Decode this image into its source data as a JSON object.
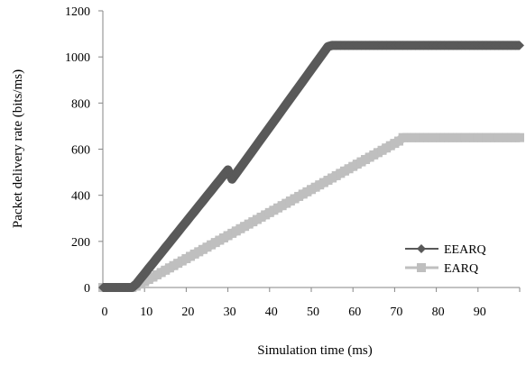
{
  "chart_data": {
    "type": "line",
    "xlabel": "Simulation time (ms)",
    "ylabel": "Packet delivery rate (bits/ms)",
    "xlim": [
      0,
      100
    ],
    "ylim": [
      0,
      1200
    ],
    "x_ticks": [
      0,
      10,
      20,
      30,
      40,
      50,
      60,
      70,
      80,
      90
    ],
    "y_ticks": [
      0,
      200,
      400,
      600,
      800,
      1000,
      1200
    ],
    "grid": false,
    "legend_position": "bottom-right",
    "series": [
      {
        "name": "EEARQ",
        "color": "#595959",
        "marker": "diamond",
        "x": [
          0,
          1,
          2,
          3,
          4,
          5,
          6,
          7,
          8,
          9,
          10,
          11,
          12,
          13,
          14,
          15,
          16,
          17,
          18,
          19,
          20,
          21,
          22,
          23,
          24,
          25,
          26,
          27,
          28,
          29,
          30,
          31,
          32,
          33,
          34,
          35,
          36,
          37,
          38,
          39,
          40,
          41,
          42,
          43,
          44,
          45,
          46,
          47,
          48,
          49,
          50,
          51,
          52,
          53,
          54,
          55,
          56,
          57,
          58,
          59,
          60,
          61,
          62,
          63,
          64,
          65,
          66,
          67,
          68,
          69,
          70,
          71,
          72,
          73,
          74,
          75,
          76,
          77,
          78,
          79,
          80,
          81,
          82,
          83,
          84,
          85,
          86,
          87,
          88,
          89,
          90,
          91,
          92,
          93,
          94,
          95,
          96,
          97,
          98,
          99,
          100
        ],
        "values": [
          0,
          0,
          0,
          0,
          0,
          0,
          0,
          0,
          15,
          38,
          60,
          83,
          105,
          128,
          150,
          173,
          195,
          218,
          240,
          263,
          285,
          308,
          330,
          353,
          375,
          398,
          420,
          443,
          465,
          488,
          510,
          470,
          495,
          520,
          545,
          570,
          595,
          620,
          645,
          670,
          695,
          720,
          745,
          770,
          795,
          820,
          845,
          870,
          895,
          920,
          945,
          970,
          995,
          1020,
          1045,
          1050,
          1050,
          1050,
          1050,
          1050,
          1050,
          1050,
          1050,
          1050,
          1050,
          1050,
          1050,
          1050,
          1050,
          1050,
          1050,
          1050,
          1050,
          1050,
          1050,
          1050,
          1050,
          1050,
          1050,
          1050,
          1050,
          1050,
          1050,
          1050,
          1050,
          1050,
          1050,
          1050,
          1050,
          1050,
          1050,
          1050,
          1050,
          1050,
          1050,
          1050,
          1050,
          1050,
          1050,
          1050,
          1050
        ]
      },
      {
        "name": "EARQ",
        "color": "#BFBFBF",
        "marker": "square",
        "x": [
          0,
          1,
          2,
          3,
          4,
          5,
          6,
          7,
          8,
          9,
          10,
          11,
          12,
          13,
          14,
          15,
          16,
          17,
          18,
          19,
          20,
          21,
          22,
          23,
          24,
          25,
          26,
          27,
          28,
          29,
          30,
          31,
          32,
          33,
          34,
          35,
          36,
          37,
          38,
          39,
          40,
          41,
          42,
          43,
          44,
          45,
          46,
          47,
          48,
          49,
          50,
          51,
          52,
          53,
          54,
          55,
          56,
          57,
          58,
          59,
          60,
          61,
          62,
          63,
          64,
          65,
          66,
          67,
          68,
          69,
          70,
          71,
          72,
          73,
          74,
          75,
          76,
          77,
          78,
          79,
          80,
          81,
          82,
          83,
          84,
          85,
          86,
          87,
          88,
          89,
          90,
          91,
          92,
          93,
          94,
          95,
          96,
          97,
          98,
          99,
          100
        ],
        "values": [
          0,
          0,
          0,
          0,
          0,
          0,
          0,
          0,
          6,
          15,
          25,
          35,
          45,
          55,
          65,
          75,
          85,
          95,
          105,
          115,
          125,
          135,
          145,
          155,
          165,
          175,
          185,
          195,
          205,
          215,
          225,
          235,
          245,
          255,
          265,
          275,
          285,
          295,
          305,
          315,
          325,
          335,
          345,
          355,
          365,
          375,
          385,
          395,
          405,
          415,
          425,
          435,
          445,
          455,
          465,
          475,
          485,
          495,
          505,
          515,
          525,
          535,
          545,
          555,
          565,
          575,
          585,
          595,
          605,
          615,
          625,
          635,
          650,
          650,
          650,
          650,
          650,
          650,
          650,
          650,
          650,
          650,
          650,
          650,
          650,
          650,
          650,
          650,
          650,
          650,
          650,
          650,
          650,
          650,
          650,
          650,
          650,
          650,
          650,
          650,
          650
        ]
      }
    ]
  }
}
